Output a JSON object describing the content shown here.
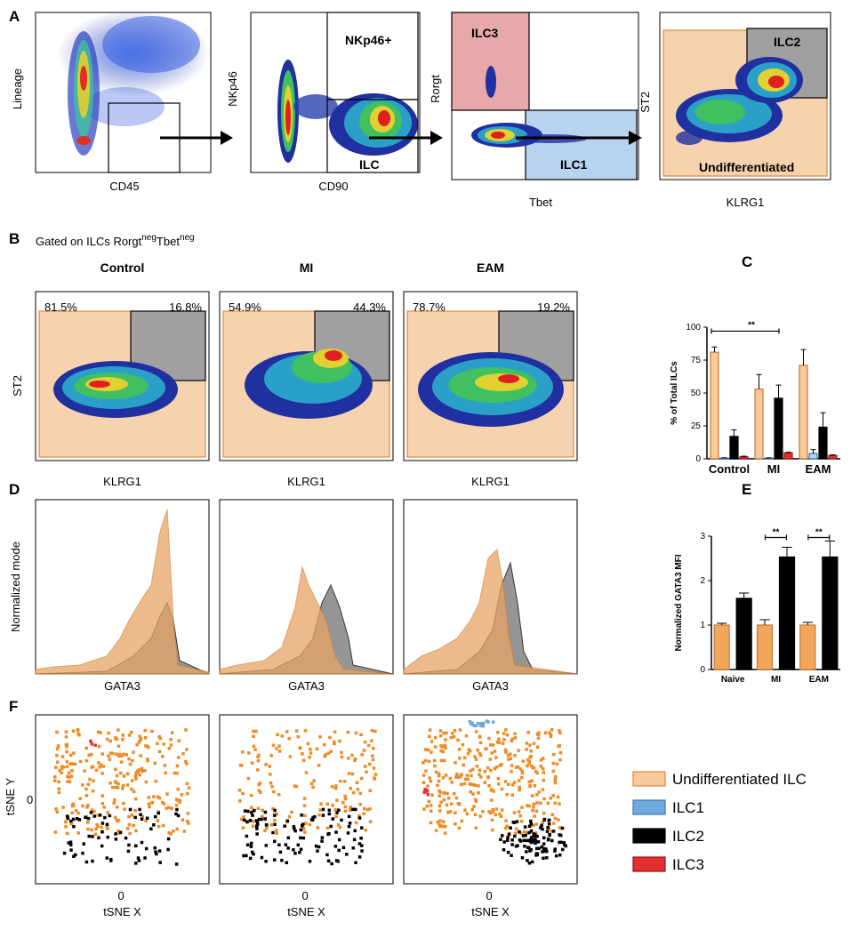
{
  "panel_letters": {
    "a": "A",
    "b": "B",
    "c": "C",
    "d": "D",
    "e": "E",
    "f": "F"
  },
  "colors": {
    "undiff": "#f2a65a",
    "undiff_fill": "#f7c99b",
    "ilc1": "#6fa8dc",
    "ilc2": "#000000",
    "ilc3": "#e03030",
    "gate_gray": "#a0a0a0",
    "gate_peach": "#f7d2ae",
    "gate_pink": "#e7a8aa",
    "gate_blue": "#b7d3ef"
  },
  "panel_a": {
    "plots": [
      {
        "xlabel": "CD45",
        "ylabel": "Lineage",
        "gates": []
      },
      {
        "xlabel": "CD90",
        "ylabel": "NKp46",
        "gates": [
          "NKp46+",
          "ILC"
        ]
      },
      {
        "xlabel": "Tbet",
        "ylabel": "Rorgt",
        "gates": [
          "ILC3",
          "ILC1"
        ]
      },
      {
        "xlabel": "KLRG1",
        "ylabel": "ST2",
        "gates": [
          "ILC2",
          "Undifferentiated"
        ]
      }
    ]
  },
  "panel_b": {
    "heading_prefix": "Gated on ILCs Rorgt",
    "sup1": "neg",
    "heading_mid": "Tbet",
    "sup2": "neg",
    "ylabel": "ST2",
    "plots": [
      {
        "title": "Control",
        "left_pct": "81.5%",
        "right_pct": "16.8%",
        "xlabel": "KLRG1"
      },
      {
        "title": "MI",
        "left_pct": "54.9%",
        "right_pct": "44.3%",
        "xlabel": "KLRG1"
      },
      {
        "title": "EAM",
        "left_pct": "78.7%",
        "right_pct": "19.2%",
        "xlabel": "KLRG1"
      }
    ]
  },
  "panel_d": {
    "ylabel": "Normalized mode",
    "xlabels": [
      "GATA3",
      "GATA3",
      "GATA3"
    ]
  },
  "panel_f": {
    "ylabel": "tSNE Y",
    "xlabel": "tSNE X",
    "tick_zero": "0"
  },
  "chart_data": [
    {
      "type": "bar",
      "id": "panel_c",
      "ylabel": "% of Total ILCs",
      "categories": [
        "Control",
        "MI",
        "EAM"
      ],
      "ylim": [
        0,
        100
      ],
      "yticks": [
        "0",
        "25",
        "50",
        "75",
        "100"
      ],
      "series": [
        {
          "name": "Undifferentiated ILC",
          "values": [
            81,
            53,
            71
          ],
          "errors": [
            4,
            11,
            12
          ]
        },
        {
          "name": "ILC1",
          "values": [
            0.5,
            0.5,
            4
          ],
          "errors": [
            0.3,
            0.3,
            3
          ]
        },
        {
          "name": "ILC2",
          "values": [
            17,
            46,
            24
          ],
          "errors": [
            5,
            10,
            11
          ]
        },
        {
          "name": "ILC3",
          "values": [
            1.5,
            4.5,
            2.5
          ],
          "errors": [
            0.5,
            0.5,
            0.5
          ]
        }
      ],
      "significance": "**"
    },
    {
      "type": "bar",
      "id": "panel_e",
      "ylabel": "Normalized GATA3 MFI",
      "categories": [
        "Naive",
        "MI",
        "EAM"
      ],
      "ylim": [
        0,
        3
      ],
      "yticks": [
        "0",
        "1",
        "2",
        "3"
      ],
      "series": [
        {
          "name": "Undifferentiated ILC",
          "values": [
            1.0,
            1.0,
            1.0
          ],
          "errors": [
            0.04,
            0.12,
            0.06
          ]
        },
        {
          "name": "ILC2",
          "values": [
            1.6,
            2.53,
            2.53
          ],
          "errors": [
            0.12,
            0.22,
            0.36
          ]
        }
      ],
      "significance": [
        "**",
        "**"
      ]
    }
  ],
  "legend": [
    {
      "label": "Undifferentiated ILC",
      "color": "#f7c99b",
      "stroke": "#e08a3a"
    },
    {
      "label": "ILC1",
      "color": "#6fa8dc",
      "stroke": "#3d78b0"
    },
    {
      "label": "ILC2",
      "color": "#000000",
      "stroke": "#000000"
    },
    {
      "label": "ILC3",
      "color": "#e03030",
      "stroke": "#a01010"
    }
  ]
}
